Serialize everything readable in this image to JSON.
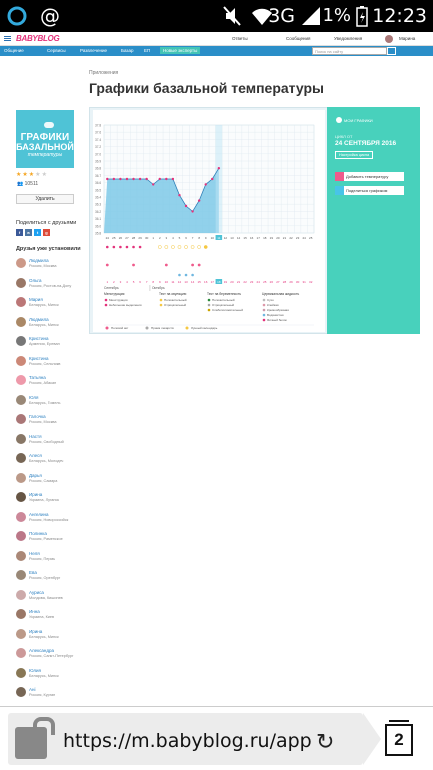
{
  "status": {
    "time": "12:23",
    "battery": "1%",
    "network": "3G"
  },
  "topbar": {
    "logo": "BABYBLOG",
    "answers": "Ответы",
    "messages": "Сообщения",
    "notifications": "Уведомления",
    "user": "Марина"
  },
  "nav": {
    "items": [
      "Общение",
      "Сервисы",
      "Развлечение",
      "Базар",
      "ЕП",
      "Новые эксперты"
    ],
    "active_index": 5,
    "search_placeholder": "Поиск на сайту"
  },
  "breadcrumb": "Приложения",
  "title": "Графики базальной температуры",
  "appcard": {
    "line1": "ГРАФИКИ",
    "line2": "БАЗАЛЬНОЙ",
    "line3": "температуры",
    "rating": 3,
    "users": "10511",
    "delete_label": "Удалить"
  },
  "share": {
    "heading": "Поделиться с друзьями",
    "icons": [
      {
        "label": "f",
        "color": "#3b5998"
      },
      {
        "label": "в",
        "color": "#4c75a3"
      },
      {
        "label": "t",
        "color": "#1da1f2"
      },
      {
        "label": "g",
        "color": "#dd4b39"
      }
    ]
  },
  "friends": {
    "heading": "Друзья уже установили",
    "list": [
      {
        "name": "Людмила",
        "location": "Россия, Москва",
        "color": "#c98"
      },
      {
        "name": "Ольга",
        "location": "Россия, Ростов-на-Дону",
        "color": "#976"
      },
      {
        "name": "Мария",
        "location": "Беларусь, Минск",
        "color": "#b77"
      },
      {
        "name": "Людмила",
        "location": "Беларусь, Минск",
        "color": "#a86"
      },
      {
        "name": "Кристина",
        "location": "Армения, Ереван",
        "color": "#777"
      },
      {
        "name": "Кристина",
        "location": "Россия, Сельникв",
        "color": "#c87"
      },
      {
        "name": "Татьяна",
        "location": "Россия, Абакан",
        "color": "#e9a"
      },
      {
        "name": "Юля",
        "location": "Беларусь, Гомель",
        "color": "#987"
      },
      {
        "name": "Галочка",
        "location": "Россия, Москва",
        "color": "#a77"
      },
      {
        "name": "Настя",
        "location": "Россия, Свободный",
        "color": "#876"
      },
      {
        "name": "Алеся",
        "location": "Беларусь, Молодеч",
        "color": "#765"
      },
      {
        "name": "Дарья",
        "location": "Россия, Самара",
        "color": "#b98"
      },
      {
        "name": "Ирина",
        "location": "Украина, Луганск",
        "color": "#654"
      },
      {
        "name": "Ангелина",
        "location": "Россия, Новороссийск",
        "color": "#c89"
      },
      {
        "name": "Полинка",
        "location": "Россия, Раменское",
        "color": "#b78"
      },
      {
        "name": "Неля",
        "location": "Россия, Пермь",
        "color": "#a87"
      },
      {
        "name": "Ева",
        "location": "Россия, Оренбург",
        "color": "#987"
      },
      {
        "name": "Ауриса",
        "location": "Молдова, Кишинев",
        "color": "#caa"
      },
      {
        "name": "Инна",
        "location": "Украина, Киев",
        "color": "#976"
      },
      {
        "name": "Ирина",
        "location": "Беларусь, Минск",
        "color": "#b98"
      },
      {
        "name": "Александра",
        "location": "Россия, Санкт-Петербург",
        "color": "#c99"
      },
      {
        "name": "Юлия",
        "location": "Беларусь, Минск",
        "color": "#875"
      },
      {
        "name": "Ані",
        "location": "Россия, Курган",
        "color": "#765"
      }
    ]
  },
  "panel": {
    "my_charts": "МОИ ГРАФИКИ",
    "date_label": "ЦИКЛ ОТ",
    "date": "24 СЕНТЯБРЯ 2016",
    "cycle_settings": "Настройка цикла",
    "add_temp": "Добавить температуру",
    "share_chart": "Поделиться графиком"
  },
  "chart_data": {
    "type": "line",
    "x": [
      1,
      2,
      3,
      4,
      5,
      6,
      7,
      8,
      9,
      10,
      11,
      12,
      13,
      14,
      15,
      16,
      17,
      18
    ],
    "values": [
      36.8,
      36.8,
      36.8,
      36.8,
      36.8,
      36.8,
      36.8,
      36.7,
      36.8,
      36.8,
      36.8,
      36.5,
      36.3,
      36.2,
      36.4,
      36.7,
      36.8,
      37.0
    ],
    "ylim": [
      35.8,
      37.8
    ],
    "yticks": [
      "37.8",
      "37.6",
      "37.4",
      "37.2",
      "37.0",
      "36.9",
      "36.8",
      "36.7",
      "36.6",
      "36.5",
      "36.4",
      "36.3",
      "36.2",
      "36.1",
      "36.0",
      "35.8"
    ],
    "days": [
      "24",
      "25",
      "26",
      "27",
      "28",
      "29",
      "30",
      "1",
      "2",
      "3",
      "4",
      "5",
      "6",
      "7",
      "8",
      "9",
      "10",
      "11",
      "12",
      "13",
      "14",
      "15",
      "16",
      "17",
      "18",
      "19",
      "20",
      "21",
      "22",
      "23",
      "24",
      "25"
    ],
    "cycle_days": [
      "1",
      "2",
      "3",
      "4",
      "5",
      "6",
      "7",
      "8",
      "9",
      "10",
      "11",
      "12",
      "13",
      "14",
      "15",
      "16",
      "17",
      "18",
      "19",
      "20",
      "21",
      "22",
      "23",
      "24",
      "25",
      "26",
      "27",
      "28",
      "29",
      "30",
      "31",
      "32"
    ],
    "months": [
      "Сентябрь",
      "Октябрь"
    ],
    "today_index": 17
  },
  "legend": {
    "menstruation": {
      "title": "Менструация",
      "items": [
        "Менструация",
        "Небольшие выделения"
      ]
    },
    "ovulation": {
      "title": "Тест на овуляцию",
      "items": [
        "Положительный",
        "Отрицательный"
      ]
    },
    "pregnancy": {
      "title": "Тест на беременность",
      "items": [
        "Положительный",
        "Отрицательный",
        "Слабоположительный"
      ]
    },
    "fluid": {
      "title": "Цервикальная жидкость",
      "items": [
        "Сухо",
        "Клейкая",
        "Кремообразная",
        "Водянистая",
        "Яичный белок"
      ]
    },
    "bottom": [
      "Половой акт",
      "Прием лекарств",
      "Лунный календарь"
    ]
  },
  "browser": {
    "url": "https://m.babyblog.ru/app/ba",
    "tabs": "2"
  }
}
